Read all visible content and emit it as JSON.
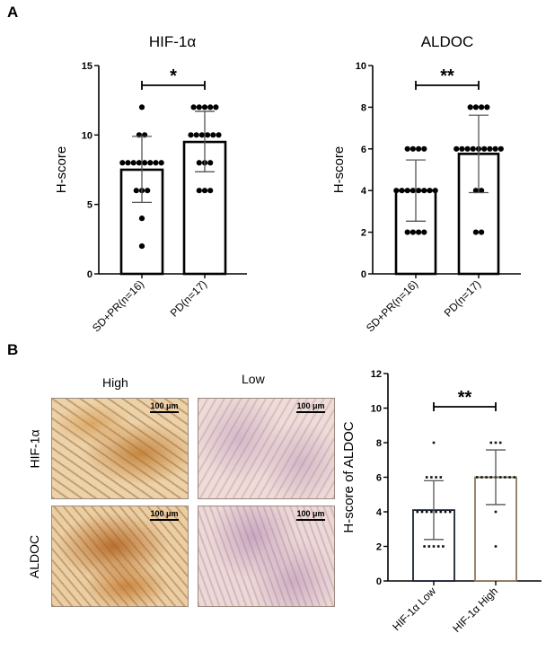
{
  "figure": {
    "panel_a_label": "A",
    "panel_b_label": "B",
    "panel_b_images": {
      "column_headers": [
        "High",
        "Low"
      ],
      "row_headers": [
        "HIF-1α",
        "ALDOC"
      ],
      "scale_bar_label": "100 μm"
    }
  },
  "chart_data": [
    {
      "id": "hif1a",
      "type": "bar",
      "title": "HIF-1α",
      "xlabel": "",
      "ylabel": "H-score",
      "categories": [
        "SD+PR(n=16)",
        "PD(n=17)"
      ],
      "values": [
        7.5,
        9.5
      ],
      "sd": [
        [
          5.15,
          9.9
        ],
        [
          7.35,
          11.7
        ]
      ],
      "points": [
        [
          12,
          10,
          10,
          8,
          8,
          8,
          8,
          8,
          8,
          8,
          8,
          6,
          6,
          6,
          4,
          2
        ],
        [
          12,
          12,
          12,
          12,
          12,
          10,
          10,
          10,
          10,
          10,
          10,
          8,
          8,
          8,
          6,
          6,
          6
        ]
      ],
      "ylim": [
        0,
        15
      ],
      "yticks": [
        0,
        5,
        10,
        15
      ],
      "significance": "*",
      "bar_colors": [
        "#000000",
        "#000000"
      ],
      "grid": false
    },
    {
      "id": "aldoc",
      "type": "bar",
      "title": "ALDOC",
      "xlabel": "",
      "ylabel": "H-score",
      "categories": [
        "SD+PR(n=16)",
        "PD(n=17)"
      ],
      "values": [
        4.0,
        5.76
      ],
      "sd": [
        [
          2.53,
          5.47
        ],
        [
          3.9,
          7.62
        ]
      ],
      "points": [
        [
          6,
          6,
          6,
          6,
          4,
          4,
          4,
          4,
          4,
          4,
          4,
          4,
          2,
          2,
          2,
          2
        ],
        [
          8,
          8,
          8,
          8,
          6,
          6,
          6,
          6,
          6,
          6,
          6,
          6,
          6,
          4,
          4,
          2,
          2
        ]
      ],
      "ylim": [
        0,
        10
      ],
      "yticks": [
        0,
        2,
        4,
        6,
        8,
        10
      ],
      "significance": "**",
      "bar_colors": [
        "#000000",
        "#000000"
      ],
      "grid": false
    },
    {
      "id": "aldoc_by_hif",
      "type": "bar",
      "title": "",
      "xlabel": "",
      "ylabel": "H-score of ALDOC",
      "categories": [
        "HIF-1α Low",
        "HIF-1α High"
      ],
      "values": [
        4.1,
        6.0
      ],
      "sd": [
        [
          2.4,
          5.8
        ],
        [
          4.42,
          7.58
        ]
      ],
      "points": [
        [
          8,
          6,
          6,
          6,
          6,
          4,
          4,
          4,
          4,
          4,
          4,
          4,
          4,
          2,
          2,
          2,
          2,
          2
        ],
        [
          8,
          8,
          8,
          6,
          6,
          6,
          6,
          6,
          6,
          6,
          6,
          6,
          4,
          2
        ]
      ],
      "ylim": [
        0,
        12
      ],
      "yticks": [
        0,
        2,
        4,
        6,
        8,
        10,
        12
      ],
      "significance": "**",
      "bar_colors": [
        "#1a2233",
        "#8a7a5a"
      ],
      "grid": false
    }
  ]
}
